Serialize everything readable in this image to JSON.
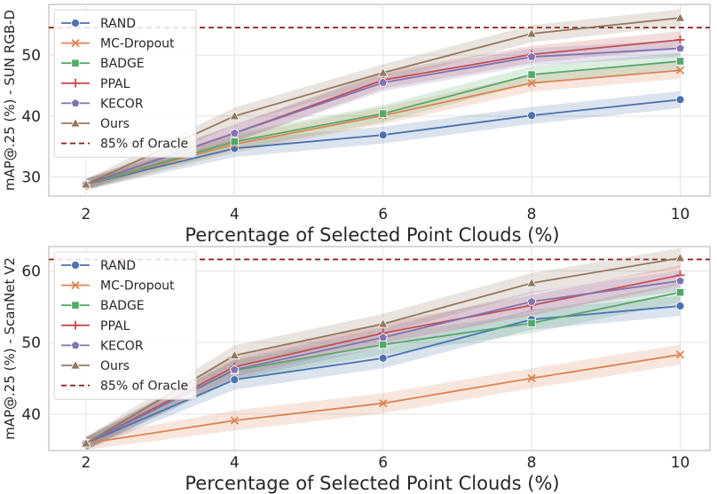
{
  "chart_data": [
    {
      "type": "line",
      "xlabel": "Percentage of Selected Point Clouds (%)",
      "ylabel": "mAP@.25 (%) - SUN RGB-D",
      "x": [
        2,
        4,
        6,
        8,
        10
      ],
      "xticks": [
        "2",
        "4",
        "6",
        "8",
        "10"
      ],
      "yticks": [
        "30",
        "40",
        "50"
      ],
      "ytick_values": [
        30,
        40,
        50
      ],
      "xlim": [
        1.5,
        10.4
      ],
      "ylim": [
        26.9,
        58.3
      ],
      "grid": true,
      "legend_position": "top-left",
      "reference": {
        "name": "85% of Oracle",
        "value": 54.5,
        "color": "#8b1a1a"
      },
      "series": [
        {
          "name": "RAND",
          "color": "#4c72b0",
          "marker": "circle",
          "values": [
            28.8,
            34.7,
            36.9,
            40.1,
            42.7
          ]
        },
        {
          "name": "MC-Dropout",
          "color": "#dd8452",
          "marker": "x",
          "values": [
            28.8,
            35.4,
            40.1,
            45.4,
            47.5
          ]
        },
        {
          "name": "BADGE",
          "color": "#55a868",
          "marker": "square",
          "values": [
            28.8,
            35.8,
            40.4,
            46.8,
            49.0
          ]
        },
        {
          "name": "PPAL",
          "color": "#c44e52",
          "marker": "plus",
          "values": [
            28.8,
            37.2,
            45.9,
            50.1,
            52.5
          ]
        },
        {
          "name": "KECOR",
          "color": "#8172b3",
          "marker": "pentagon",
          "values": [
            28.8,
            37.2,
            45.5,
            49.7,
            51.1
          ]
        },
        {
          "name": "Ours",
          "color": "#937860",
          "marker": "triangle",
          "values": [
            28.8,
            40.0,
            47.1,
            53.5,
            56.1
          ]
        }
      ]
    },
    {
      "type": "line",
      "xlabel": "Percentage of Selected Point Clouds (%)",
      "ylabel": "mAP@.25 (%) - ScanNet V2",
      "x": [
        2,
        4,
        6,
        8,
        10
      ],
      "xticks": [
        "2",
        "4",
        "6",
        "8",
        "10"
      ],
      "yticks": [
        "40",
        "50",
        "60"
      ],
      "ytick_values": [
        40,
        50,
        60
      ],
      "xlim": [
        1.5,
        10.4
      ],
      "ylim": [
        34.9,
        63.4
      ],
      "grid": true,
      "legend_position": "top-left",
      "reference": {
        "name": "85% of Oracle",
        "value": 61.6,
        "color": "#8b1a1a"
      },
      "series": [
        {
          "name": "RAND",
          "color": "#4c72b0",
          "marker": "circle",
          "values": [
            35.9,
            44.8,
            47.8,
            53.2,
            55.1
          ]
        },
        {
          "name": "MC-Dropout",
          "color": "#dd8452",
          "marker": "x",
          "values": [
            35.9,
            39.1,
            41.5,
            45.0,
            48.3
          ]
        },
        {
          "name": "BADGE",
          "color": "#55a868",
          "marker": "square",
          "values": [
            35.9,
            46.1,
            49.7,
            52.7,
            57.0
          ]
        },
        {
          "name": "PPAL",
          "color": "#c44e52",
          "marker": "plus",
          "values": [
            35.9,
            46.6,
            51.3,
            55.2,
            59.4
          ]
        },
        {
          "name": "KECOR",
          "color": "#8172b3",
          "marker": "pentagon",
          "values": [
            35.9,
            46.2,
            50.7,
            55.7,
            58.6
          ]
        },
        {
          "name": "Ours",
          "color": "#937860",
          "marker": "triangle",
          "values": [
            35.9,
            48.2,
            52.6,
            58.3,
            61.8
          ]
        }
      ]
    }
  ]
}
